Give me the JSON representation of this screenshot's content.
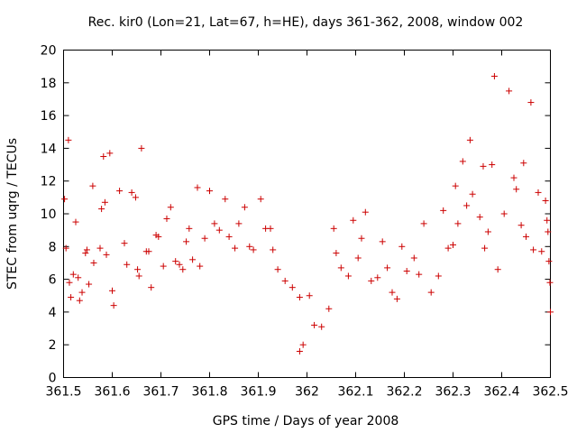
{
  "chart_data": {
    "type": "scatter",
    "title": "Rec. kir0 (Lon=21, Lat=67, h=HE), days 361-362, 2008, window 002",
    "xlabel": "GPS time / Days of year 2008",
    "ylabel": "STEC from uqrg / TECUs",
    "xlim": [
      361.5,
      362.5
    ],
    "ylim": [
      0,
      20
    ],
    "xticks": [
      "361.5",
      "361.6",
      "361.7",
      "361.8",
      "361.9",
      "362",
      "362.1",
      "362.2",
      "362.3",
      "362.4",
      "362.5"
    ],
    "yticks": [
      "0",
      "2",
      "4",
      "6",
      "8",
      "10",
      "12",
      "14",
      "16",
      "18",
      "20"
    ],
    "grid": false,
    "legend": "none",
    "marker": "plus",
    "color": "#cc0000",
    "series": [
      {
        "points": [
          [
            361.502,
            10.9
          ],
          [
            361.505,
            7.9
          ],
          [
            361.51,
            14.5
          ],
          [
            361.512,
            5.8
          ],
          [
            361.515,
            4.9
          ],
          [
            361.52,
            6.3
          ],
          [
            361.525,
            9.5
          ],
          [
            361.53,
            6.1
          ],
          [
            361.533,
            4.7
          ],
          [
            361.538,
            5.2
          ],
          [
            361.545,
            7.6
          ],
          [
            361.548,
            7.8
          ],
          [
            361.552,
            5.7
          ],
          [
            361.56,
            11.7
          ],
          [
            361.562,
            7.0
          ],
          [
            361.575,
            7.9
          ],
          [
            361.578,
            10.3
          ],
          [
            361.582,
            13.5
          ],
          [
            361.585,
            10.7
          ],
          [
            361.588,
            7.5
          ],
          [
            361.595,
            13.7
          ],
          [
            361.6,
            5.3
          ],
          [
            361.603,
            4.4
          ],
          [
            361.615,
            11.4
          ],
          [
            361.625,
            8.2
          ],
          [
            361.63,
            6.9
          ],
          [
            361.64,
            11.3
          ],
          [
            361.648,
            11.0
          ],
          [
            361.652,
            6.6
          ],
          [
            361.655,
            6.2
          ],
          [
            361.66,
            14.0
          ],
          [
            361.67,
            7.7
          ],
          [
            361.675,
            7.7
          ],
          [
            361.68,
            5.5
          ],
          [
            361.69,
            8.7
          ],
          [
            361.695,
            8.6
          ],
          [
            361.705,
            6.8
          ],
          [
            361.712,
            9.7
          ],
          [
            361.72,
            10.4
          ],
          [
            361.73,
            7.1
          ],
          [
            361.738,
            6.9
          ],
          [
            361.745,
            6.6
          ],
          [
            361.752,
            8.3
          ],
          [
            361.758,
            9.1
          ],
          [
            361.765,
            7.2
          ],
          [
            361.775,
            11.6
          ],
          [
            361.78,
            6.8
          ],
          [
            361.79,
            8.5
          ],
          [
            361.8,
            11.4
          ],
          [
            361.81,
            9.4
          ],
          [
            361.82,
            9.0
          ],
          [
            361.832,
            10.9
          ],
          [
            361.84,
            8.6
          ],
          [
            361.852,
            7.9
          ],
          [
            361.86,
            9.4
          ],
          [
            361.872,
            10.4
          ],
          [
            361.882,
            8.0
          ],
          [
            361.89,
            7.8
          ],
          [
            361.905,
            10.9
          ],
          [
            361.915,
            9.1
          ],
          [
            361.925,
            9.1
          ],
          [
            361.93,
            7.8
          ],
          [
            361.94,
            6.6
          ],
          [
            361.955,
            5.9
          ],
          [
            361.97,
            5.5
          ],
          [
            361.985,
            4.9
          ],
          [
            361.985,
            1.6
          ],
          [
            361.992,
            2.0
          ],
          [
            362.005,
            5.0
          ],
          [
            362.015,
            3.2
          ],
          [
            362.03,
            3.1
          ],
          [
            362.045,
            4.2
          ],
          [
            362.055,
            9.1
          ],
          [
            362.06,
            7.6
          ],
          [
            362.07,
            6.7
          ],
          [
            362.085,
            6.2
          ],
          [
            362.095,
            9.6
          ],
          [
            362.105,
            7.3
          ],
          [
            362.112,
            8.5
          ],
          [
            362.12,
            10.1
          ],
          [
            362.132,
            5.9
          ],
          [
            362.145,
            6.1
          ],
          [
            362.155,
            8.3
          ],
          [
            362.165,
            6.7
          ],
          [
            362.175,
            5.2
          ],
          [
            362.185,
            4.8
          ],
          [
            362.195,
            8.0
          ],
          [
            362.205,
            6.5
          ],
          [
            362.22,
            7.3
          ],
          [
            362.23,
            6.3
          ],
          [
            362.24,
            9.4
          ],
          [
            362.255,
            5.2
          ],
          [
            362.27,
            6.2
          ],
          [
            362.28,
            10.2
          ],
          [
            362.29,
            7.9
          ],
          [
            362.3,
            8.1
          ],
          [
            362.305,
            11.7
          ],
          [
            362.31,
            9.4
          ],
          [
            362.32,
            13.2
          ],
          [
            362.328,
            10.5
          ],
          [
            362.335,
            14.5
          ],
          [
            362.34,
            11.2
          ],
          [
            362.355,
            9.8
          ],
          [
            362.362,
            12.9
          ],
          [
            362.365,
            7.9
          ],
          [
            362.372,
            8.9
          ],
          [
            362.38,
            13.0
          ],
          [
            362.385,
            18.4
          ],
          [
            362.392,
            6.6
          ],
          [
            362.405,
            10.0
          ],
          [
            362.415,
            17.5
          ],
          [
            362.425,
            12.2
          ],
          [
            362.43,
            11.5
          ],
          [
            362.44,
            9.3
          ],
          [
            362.445,
            13.1
          ],
          [
            362.45,
            8.6
          ],
          [
            362.46,
            16.8
          ],
          [
            362.465,
            7.8
          ],
          [
            362.475,
            11.3
          ],
          [
            362.482,
            7.7
          ],
          [
            362.49,
            10.8
          ],
          [
            362.493,
            9.6
          ],
          [
            362.495,
            8.9
          ],
          [
            362.497,
            7.1
          ],
          [
            362.499,
            5.8
          ],
          [
            362.5,
            4.0
          ]
        ]
      }
    ]
  }
}
